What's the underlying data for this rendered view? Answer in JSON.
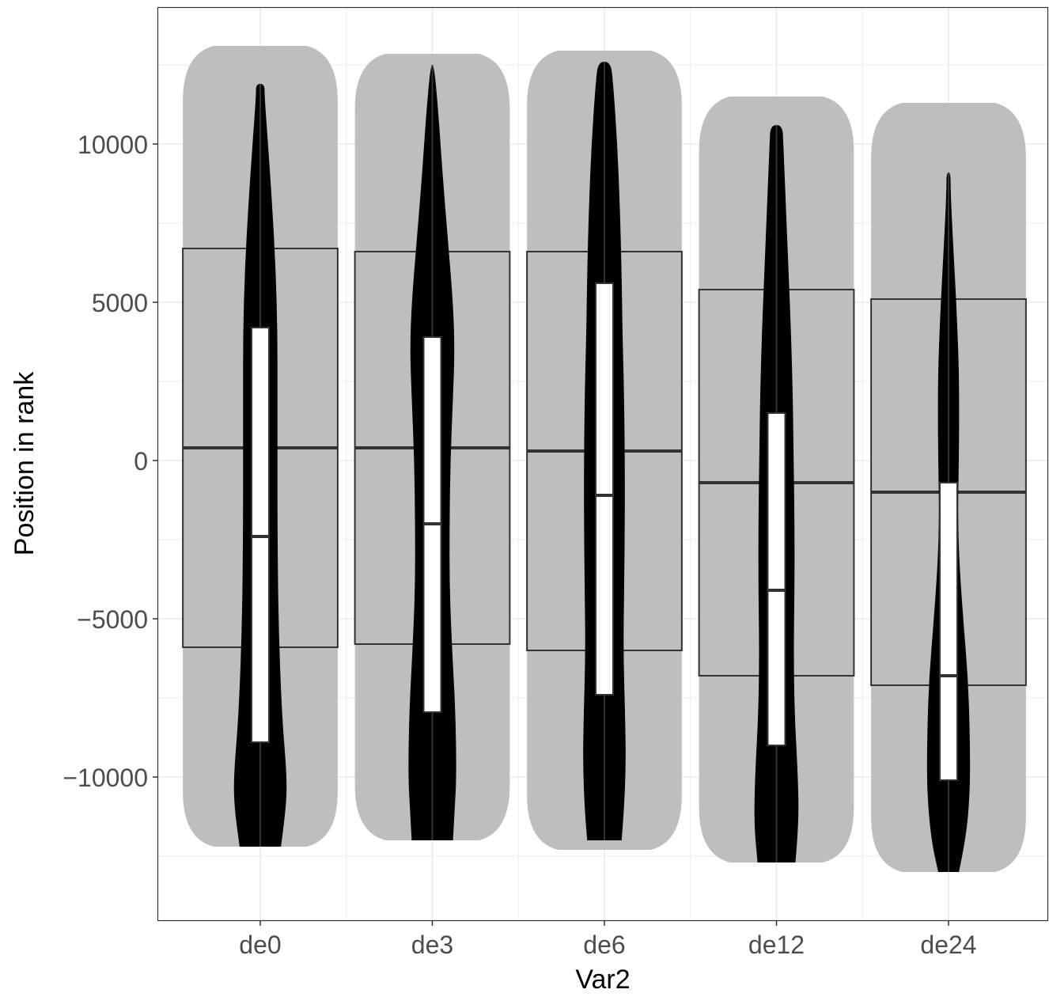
{
  "chart_data": {
    "type": "violin",
    "title": "",
    "xlabel": "Var2",
    "ylabel": "Position in rank",
    "categories": [
      "de0",
      "de3",
      "de6",
      "de12",
      "de24"
    ],
    "y_ticks": [
      {
        "value": 10000,
        "label": "10000"
      },
      {
        "value": 5000,
        "label": "5000"
      },
      {
        "value": 0,
        "label": "0"
      },
      {
        "value": -5000,
        "label": "−5000"
      },
      {
        "value": -10000,
        "label": "−10000"
      }
    ],
    "ylim": [
      -14500,
      14350
    ],
    "grid": true,
    "legend": "none",
    "colors": {
      "background_shape": "#bebebe",
      "violin": "#000000",
      "inner_box": "#ffffff",
      "outer_box_line": "#333333",
      "grid": "#ebebeb",
      "axis_text": "#4d4d4d",
      "axis_title": "#000000"
    },
    "groups": [
      {
        "name": "de0",
        "range": [
          -12200,
          11900
        ],
        "outer_box": {
          "q1": -5900,
          "median": 400,
          "q3": 6700
        },
        "outer_envelope": {
          "bottom": -12200,
          "top": 13100
        },
        "inner_box": {
          "q1": -8900,
          "median": -2400,
          "q3": 4200
        },
        "violin_profile": [
          [
            -12200,
            0.12
          ],
          [
            -11000,
            0.15
          ],
          [
            -10000,
            0.155
          ],
          [
            -8000,
            0.125
          ],
          [
            -5000,
            0.105
          ],
          [
            -2000,
            0.1
          ],
          [
            0,
            0.1
          ],
          [
            2000,
            0.1
          ],
          [
            4000,
            0.1
          ],
          [
            6000,
            0.09
          ],
          [
            8000,
            0.07
          ],
          [
            10000,
            0.045
          ],
          [
            11500,
            0.025
          ],
          [
            11900,
            0.025
          ]
        ]
      },
      {
        "name": "de3",
        "range": [
          -12000,
          12500
        ],
        "outer_box": {
          "q1": -5800,
          "median": 400,
          "q3": 6600
        },
        "outer_envelope": {
          "bottom": -12000,
          "top": 12850
        },
        "inner_box": {
          "q1": -7950,
          "median": -2000,
          "q3": 3900
        },
        "violin_profile": [
          [
            -12000,
            0.12
          ],
          [
            -11000,
            0.13
          ],
          [
            -10000,
            0.14
          ],
          [
            -8000,
            0.135
          ],
          [
            -6000,
            0.115
          ],
          [
            -4000,
            0.1
          ],
          [
            -2000,
            0.1
          ],
          [
            0,
            0.105
          ],
          [
            2000,
            0.12
          ],
          [
            3500,
            0.13
          ],
          [
            5000,
            0.12
          ],
          [
            7000,
            0.09
          ],
          [
            9000,
            0.06
          ],
          [
            11000,
            0.035
          ],
          [
            12500,
            0.01
          ]
        ]
      },
      {
        "name": "de6",
        "range": [
          -12000,
          12600
        ],
        "outer_box": {
          "q1": -6000,
          "median": 300,
          "q3": 6600
        },
        "outer_envelope": {
          "bottom": -12300,
          "top": 12950
        },
        "inner_box": {
          "q1": -7400,
          "median": -1100,
          "q3": 5600
        },
        "violin_profile": [
          [
            -12000,
            0.1
          ],
          [
            -11000,
            0.115
          ],
          [
            -9500,
            0.125
          ],
          [
            -8000,
            0.12
          ],
          [
            -6000,
            0.11
          ],
          [
            -4000,
            0.115
          ],
          [
            -1000,
            0.12
          ],
          [
            2000,
            0.115
          ],
          [
            4000,
            0.105
          ],
          [
            6000,
            0.1
          ],
          [
            8000,
            0.09
          ],
          [
            10000,
            0.075
          ],
          [
            12000,
            0.05
          ],
          [
            12600,
            0.035
          ]
        ]
      },
      {
        "name": "de12",
        "range": [
          -12700,
          10600
        ],
        "outer_box": {
          "q1": -6800,
          "median": -700,
          "q3": 5400
        },
        "outer_envelope": {
          "bottom": -12700,
          "top": 11500
        },
        "inner_box": {
          "q1": -9000,
          "median": -4100,
          "q3": 1500
        },
        "violin_profile": [
          [
            -12700,
            0.11
          ],
          [
            -11500,
            0.13
          ],
          [
            -10000,
            0.125
          ],
          [
            -8000,
            0.105
          ],
          [
            -6000,
            0.1
          ],
          [
            -4000,
            0.105
          ],
          [
            -2000,
            0.105
          ],
          [
            0,
            0.1
          ],
          [
            2000,
            0.095
          ],
          [
            4000,
            0.085
          ],
          [
            6000,
            0.07
          ],
          [
            8000,
            0.055
          ],
          [
            10000,
            0.04
          ],
          [
            10600,
            0.035
          ]
        ]
      },
      {
        "name": "de24",
        "range": [
          -13000,
          9100
        ],
        "outer_box": {
          "q1": -7100,
          "median": -1000,
          "q3": 5100
        },
        "outer_envelope": {
          "bottom": -13000,
          "top": 11300
        },
        "inner_box": {
          "q1": -10100,
          "median": -6800,
          "q3": -700
        },
        "violin_profile": [
          [
            -13000,
            0.06
          ],
          [
            -12000,
            0.1
          ],
          [
            -10500,
            0.125
          ],
          [
            -9000,
            0.125
          ],
          [
            -7000,
            0.115
          ],
          [
            -5000,
            0.085
          ],
          [
            -3000,
            0.06
          ],
          [
            -1500,
            0.055
          ],
          [
            0,
            0.06
          ],
          [
            1500,
            0.062
          ],
          [
            3000,
            0.06
          ],
          [
            5000,
            0.045
          ],
          [
            7000,
            0.025
          ],
          [
            8500,
            0.012
          ],
          [
            9100,
            0.012
          ]
        ]
      }
    ]
  }
}
